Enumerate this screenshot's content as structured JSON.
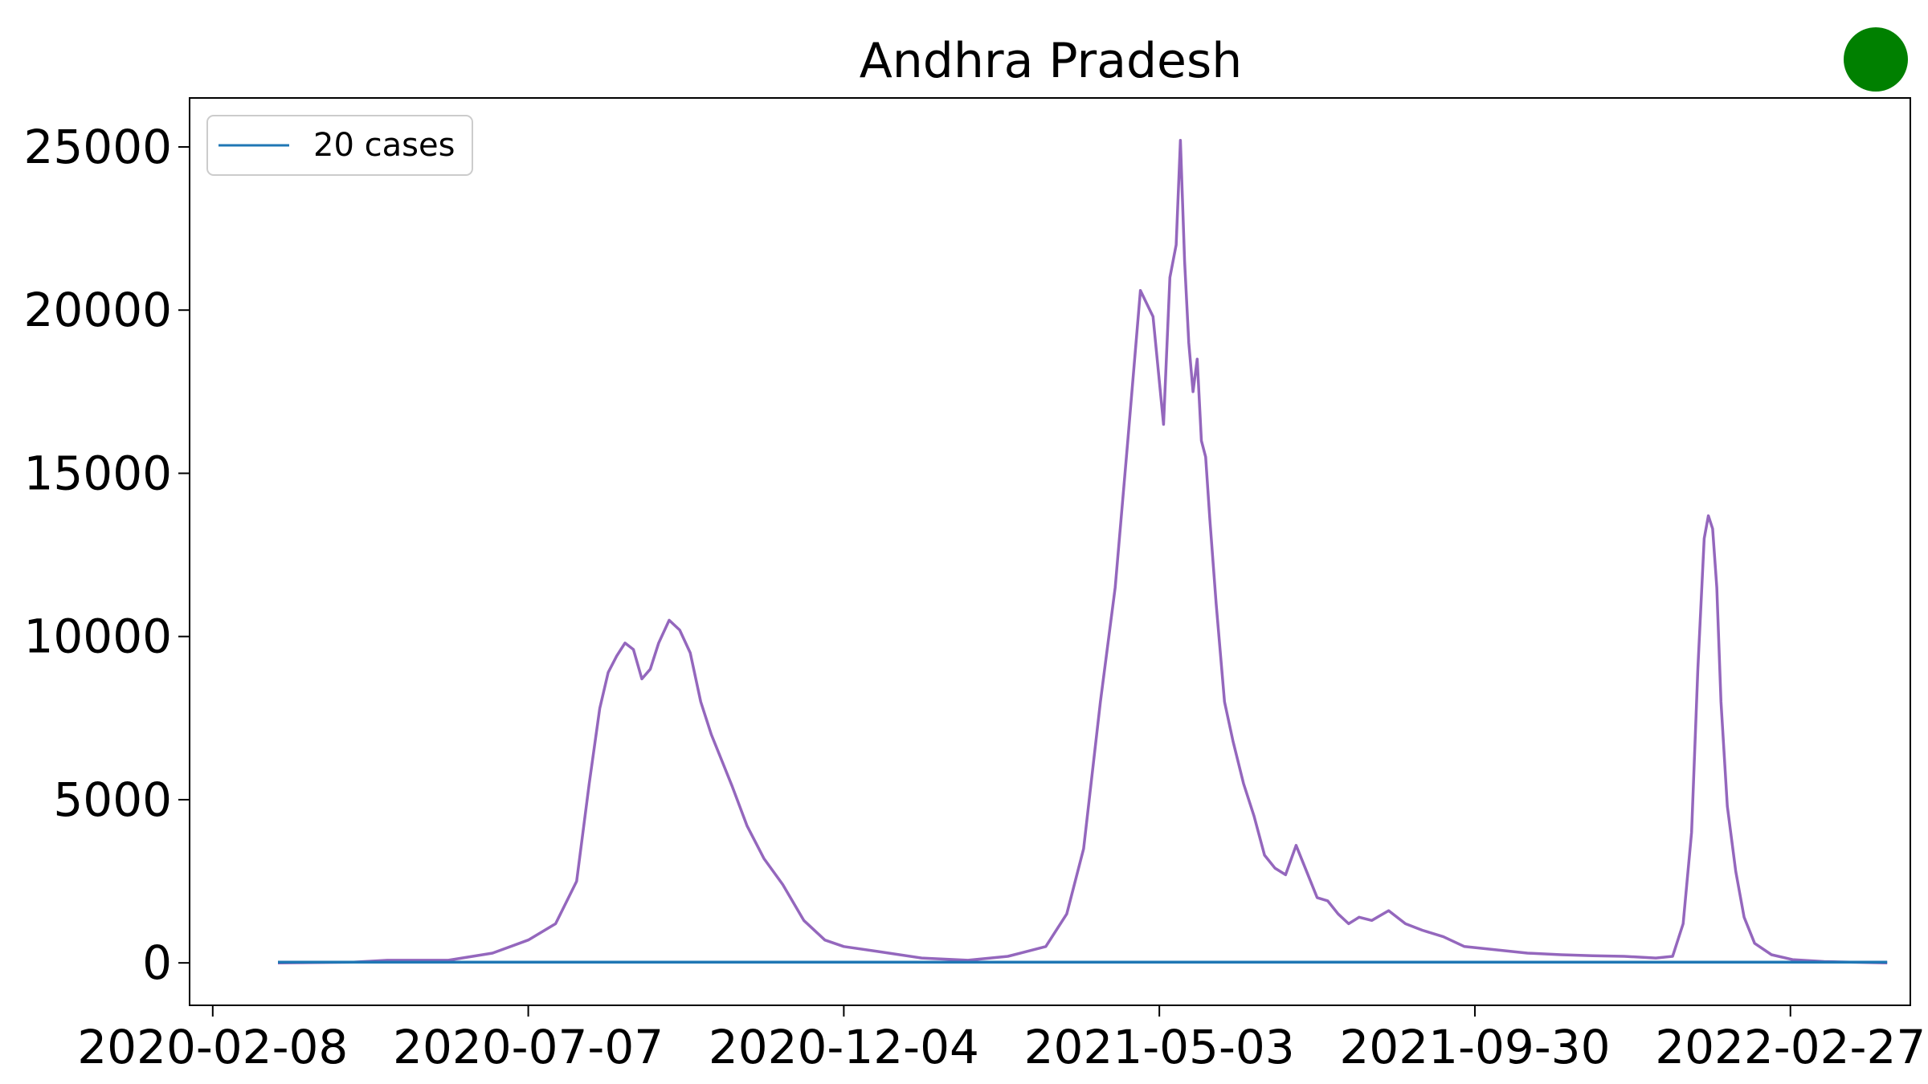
{
  "chart_data": {
    "type": "line",
    "title": "Andhra Pradesh",
    "xlabel": "",
    "ylabel": "",
    "x_ticks": [
      "2020-02-08",
      "2020-07-07",
      "2020-12-04",
      "2021-05-03",
      "2021-09-30",
      "2022-02-27"
    ],
    "xlim": [
      "2020-01-28",
      "2022-04-25"
    ],
    "ylim": [
      -1300,
      26500
    ],
    "y_ticks": [
      0,
      5000,
      10000,
      15000,
      20000,
      25000
    ],
    "grid": false,
    "legend": {
      "position": "top-left",
      "entries": [
        {
          "label": "20 cases",
          "color": "#1f77b4"
        }
      ]
    },
    "status_indicator": {
      "color": "#008000"
    },
    "series": [
      {
        "name": "20 cases",
        "color": "#1f77b4",
        "x": [
          "2020-03-10",
          "2022-04-14"
        ],
        "y": [
          20,
          20
        ]
      },
      {
        "color": "#9467bd",
        "x": [
          "2020-03-10",
          "2020-04-15",
          "2020-05-01",
          "2020-05-30",
          "2020-06-20",
          "2020-07-07",
          "2020-07-20",
          "2020-07-30",
          "2020-08-05",
          "2020-08-10",
          "2020-08-14",
          "2020-08-18",
          "2020-08-22",
          "2020-08-26",
          "2020-08-30",
          "2020-09-03",
          "2020-09-07",
          "2020-09-12",
          "2020-09-17",
          "2020-09-22",
          "2020-09-27",
          "2020-10-02",
          "2020-10-07",
          "2020-10-12",
          "2020-10-19",
          "2020-10-27",
          "2020-11-05",
          "2020-11-15",
          "2020-11-25",
          "2020-12-04",
          "2020-12-20",
          "2021-01-10",
          "2021-02-01",
          "2021-02-20",
          "2021-03-10",
          "2021-03-20",
          "2021-03-28",
          "2021-04-05",
          "2021-04-12",
          "2021-04-18",
          "2021-04-24",
          "2021-04-30",
          "2021-05-05",
          "2021-05-08",
          "2021-05-11",
          "2021-05-13",
          "2021-05-15",
          "2021-05-17",
          "2021-05-19",
          "2021-05-21",
          "2021-05-23",
          "2021-05-25",
          "2021-05-27",
          "2021-05-30",
          "2021-06-03",
          "2021-06-07",
          "2021-06-12",
          "2021-06-17",
          "2021-06-22",
          "2021-06-27",
          "2021-07-02",
          "2021-07-07",
          "2021-07-12",
          "2021-07-17",
          "2021-07-22",
          "2021-07-27",
          "2021-08-01",
          "2021-08-06",
          "2021-08-12",
          "2021-08-20",
          "2021-08-28",
          "2021-09-05",
          "2021-09-15",
          "2021-09-25",
          "2021-10-10",
          "2021-10-25",
          "2021-11-10",
          "2021-11-25",
          "2021-12-10",
          "2021-12-25",
          "2022-01-02",
          "2022-01-07",
          "2022-01-11",
          "2022-01-14",
          "2022-01-17",
          "2022-01-19",
          "2022-01-21",
          "2022-01-23",
          "2022-01-25",
          "2022-01-28",
          "2022-02-01",
          "2022-02-05",
          "2022-02-10",
          "2022-02-18",
          "2022-02-28",
          "2022-03-15",
          "2022-04-14"
        ],
        "y": [
          0,
          20,
          80,
          80,
          300,
          700,
          1200,
          2500,
          5500,
          7800,
          8900,
          9400,
          9800,
          9600,
          8700,
          9000,
          9800,
          10500,
          10200,
          9500,
          8000,
          7000,
          6200,
          5400,
          4200,
          3200,
          2400,
          1300,
          700,
          500,
          350,
          150,
          80,
          200,
          500,
          1500,
          3500,
          8000,
          11500,
          16000,
          20600,
          19800,
          16500,
          21000,
          22000,
          25200,
          21500,
          19000,
          17500,
          18500,
          16000,
          15500,
          13600,
          11000,
          8000,
          6800,
          5500,
          4500,
          3300,
          2900,
          2700,
          3600,
          2800,
          2000,
          1900,
          1500,
          1200,
          1400,
          1300,
          1600,
          1200,
          1000,
          800,
          500,
          400,
          300,
          250,
          220,
          200,
          150,
          200,
          1200,
          4000,
          9000,
          13000,
          13700,
          13300,
          11500,
          8000,
          4800,
          2800,
          1400,
          600,
          250,
          100,
          40,
          0
        ]
      }
    ]
  }
}
